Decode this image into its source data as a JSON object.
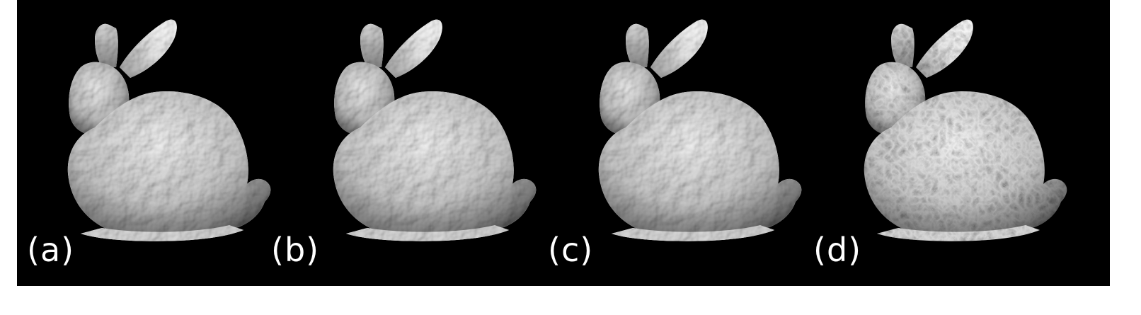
{
  "figure": {
    "background": "#000000",
    "panels": [
      {
        "label": "(a)",
        "style": "smooth"
      },
      {
        "label": "(b)",
        "style": "smooth"
      },
      {
        "label": "(c)",
        "style": "smooth"
      },
      {
        "label": "(d)",
        "style": "faceted"
      }
    ]
  }
}
